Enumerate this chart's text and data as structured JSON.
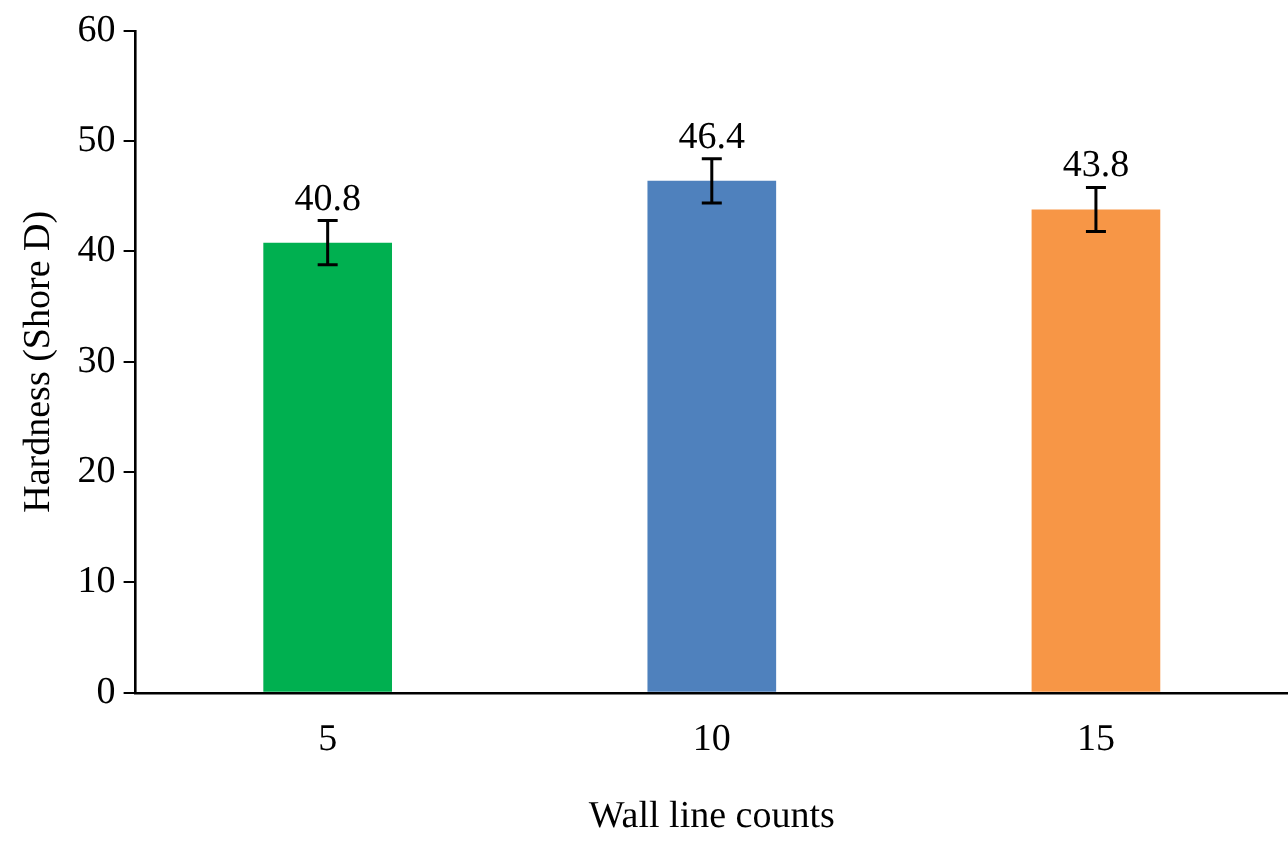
{
  "chart_data": {
    "type": "bar",
    "xlabel": "Wall line counts",
    "ylabel": "Hardness (Shore D)",
    "categories": [
      "5",
      "10",
      "15"
    ],
    "values": [
      40.8,
      46.4,
      43.8
    ],
    "colors": [
      "#00b050",
      "#4f81bd",
      "#f79646"
    ],
    "errors": [
      2,
      2,
      2
    ],
    "data_labels": true,
    "ylim": [
      0,
      60
    ],
    "yticks": [
      0,
      10,
      20,
      30,
      40,
      50,
      60
    ],
    "grid": false,
    "legend": false
  }
}
